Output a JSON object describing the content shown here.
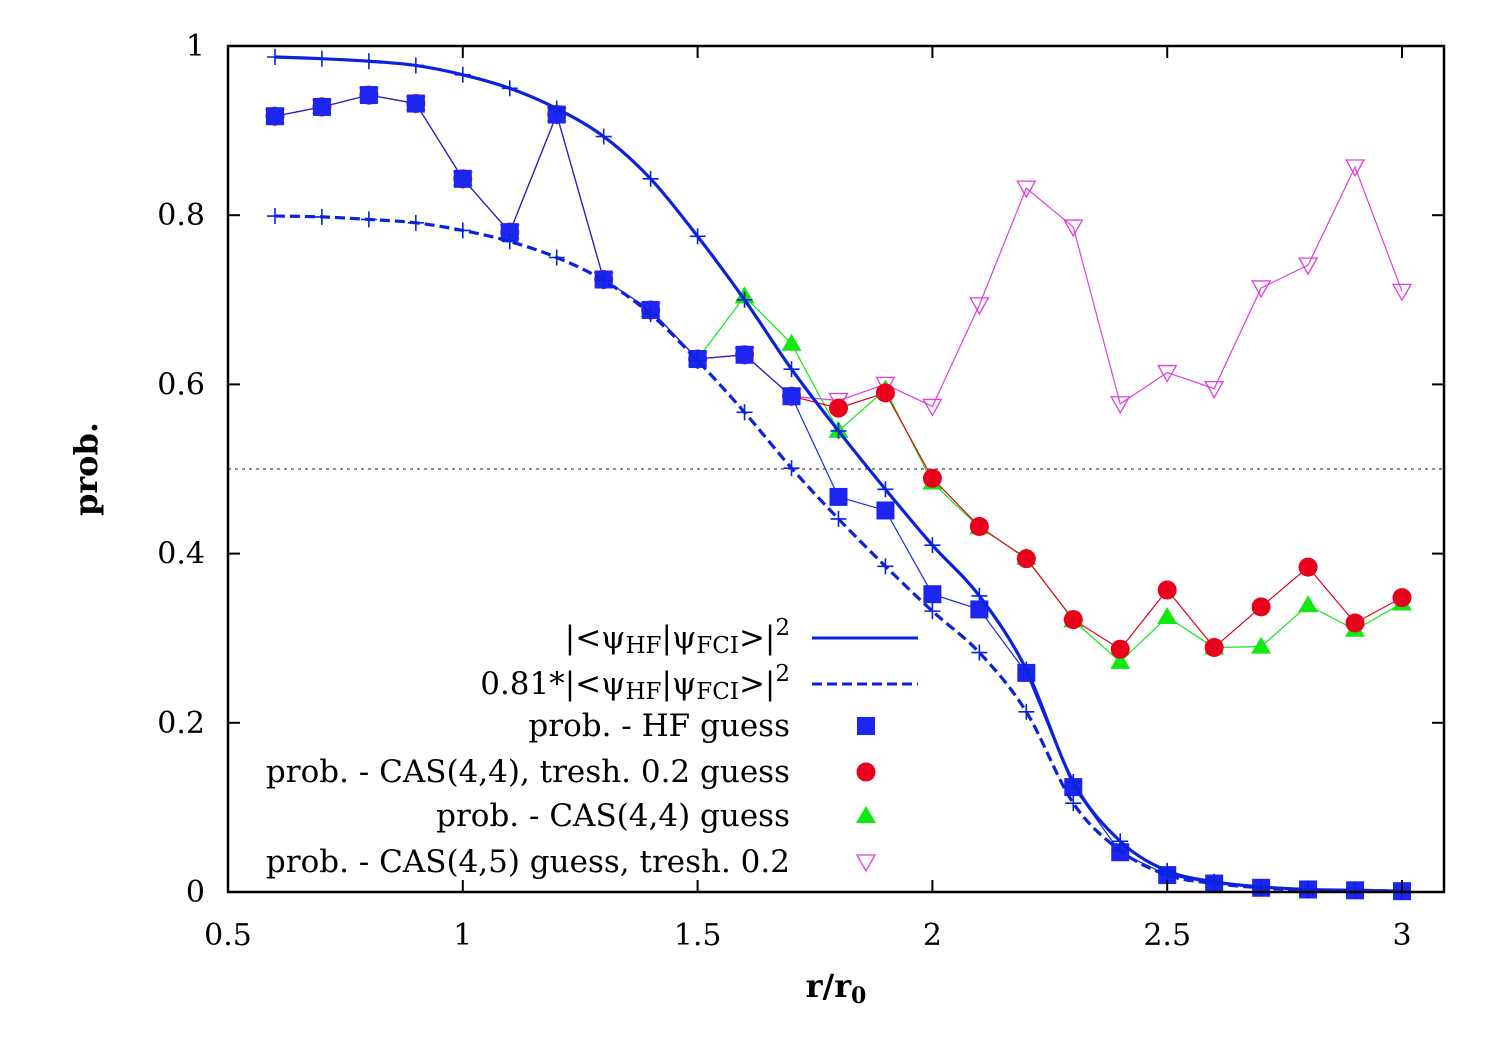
{
  "chart_data": {
    "type": "line",
    "title": "",
    "xlabel": "r/r",
    "xlabel_sub": "0",
    "ylabel": "prob.",
    "xlim": [
      0.5,
      3.1
    ],
    "ylim": [
      0,
      1
    ],
    "xticks": [
      0.5,
      1,
      1.5,
      2,
      2.5,
      3
    ],
    "xtick_labels": [
      "0.5",
      "1",
      "1.5",
      "2",
      "2.5",
      "3"
    ],
    "yticks": [
      0,
      0.2,
      0.4,
      0.6,
      0.8,
      1
    ],
    "ytick_labels": [
      "0",
      "0.2",
      "0.4",
      "0.6",
      "0.8",
      "1"
    ],
    "reference_line": {
      "y": 0.5,
      "style": "dotted"
    },
    "legend_position": "bottom-left",
    "x": [
      0.6,
      0.7,
      0.8,
      0.9,
      1.0,
      1.1,
      1.2,
      1.3,
      1.4,
      1.5,
      1.6,
      1.7,
      1.8,
      1.9,
      2.0,
      2.1,
      2.2,
      2.3,
      2.4,
      2.5,
      2.6,
      2.7,
      2.8,
      2.9,
      3.0
    ],
    "series": [
      {
        "name": "|<ψHF|ψFCI>|^2",
        "legend": {
          "prefix": "",
          "bar1": "|<ψ",
          "sub1": "HF",
          "bar2": "|ψ",
          "sub2": "FCI",
          "bar3": ">|",
          "sup": "2"
        },
        "marker": "plus",
        "line": "solid",
        "color": "#0a22dd",
        "values": [
          0.987,
          0.985,
          0.982,
          0.977,
          0.966,
          0.95,
          0.926,
          0.893,
          0.843,
          0.775,
          0.7,
          0.618,
          0.545,
          0.476,
          0.41,
          0.35,
          0.263,
          0.13,
          0.06,
          0.025,
          0.012,
          0.006,
          0.003,
          0.002,
          0.001
        ]
      },
      {
        "name": "0.81*|<ψHF|ψFCI>|^2",
        "legend": {
          "prefix": "0.81*",
          "bar1": "|<ψ",
          "sub1": "HF",
          "bar2": "|ψ",
          "sub2": "FCI",
          "bar3": ">|",
          "sup": "2"
        },
        "marker": "plus",
        "line": "dashed",
        "color": "#0a22dd",
        "values": [
          0.799,
          0.798,
          0.795,
          0.791,
          0.782,
          0.769,
          0.75,
          0.723,
          0.683,
          0.628,
          0.567,
          0.501,
          0.441,
          0.385,
          0.332,
          0.283,
          0.213,
          0.105,
          0.049,
          0.02,
          0.01,
          0.005,
          0.002,
          0.002,
          0.001
        ]
      },
      {
        "name": "prob. - HF guess",
        "marker": "square",
        "line": "thin",
        "color": "#1c26f0",
        "values": [
          0.917,
          0.928,
          0.942,
          0.932,
          0.843,
          0.78,
          0.919,
          0.724,
          0.688,
          0.63,
          0.635,
          0.586,
          0.467,
          0.451,
          0.352,
          0.334,
          0.259,
          0.124,
          0.047,
          0.02,
          0.01,
          0.005,
          0.003,
          0.002,
          0.001
        ]
      },
      {
        "name": "prob. - CAS(4,4), tresh. 0.2 guess",
        "marker": "circle",
        "line": "thin",
        "color": "#e8001c",
        "values": [
          0.917,
          0.928,
          0.942,
          0.932,
          0.843,
          0.78,
          0.919,
          0.724,
          0.688,
          0.63,
          0.635,
          0.586,
          0.572,
          0.59,
          0.489,
          0.432,
          0.394,
          0.322,
          0.287,
          0.357,
          0.289,
          0.337,
          0.384,
          0.318,
          0.348
        ]
      },
      {
        "name": "prob. - CAS(4,4) guess",
        "marker": "triangle-up",
        "line": "thin",
        "color": "#12e812",
        "values": [
          0.917,
          0.928,
          0.942,
          0.932,
          0.843,
          0.78,
          0.919,
          0.724,
          0.688,
          0.63,
          0.704,
          0.648,
          0.545,
          0.594,
          0.484,
          0.431,
          0.395,
          0.321,
          0.272,
          0.325,
          0.289,
          0.29,
          0.339,
          0.31,
          0.341
        ]
      },
      {
        "name": "prob. - CAS(4,5) guess, tresh. 0.2",
        "marker": "triangle-down",
        "line": "thin",
        "color": "#e23ce2",
        "values": [
          0.917,
          0.928,
          0.942,
          0.932,
          0.843,
          0.78,
          0.919,
          0.724,
          0.688,
          0.63,
          0.635,
          0.586,
          0.581,
          0.6,
          0.574,
          0.694,
          0.832,
          0.786,
          0.577,
          0.614,
          0.595,
          0.714,
          0.741,
          0.857,
          0.71
        ]
      }
    ]
  }
}
